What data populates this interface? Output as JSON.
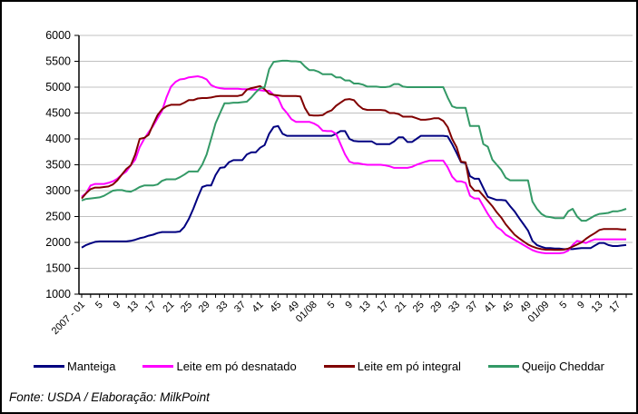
{
  "footer": {
    "text": "Fonte: USDA / Elaboração: MilkPoint"
  },
  "chart_data": {
    "type": "line",
    "title": "",
    "xlabel": "",
    "ylabel": "",
    "ylim": [
      1000,
      6000
    ],
    "y_tick_step": 500,
    "y_tick_labels": [
      "6000",
      "5500",
      "5000",
      "4500",
      "4000",
      "3500",
      "3000",
      "2500",
      "2000",
      "1500",
      "1000"
    ],
    "x_tick_labels": [
      "2007 - 01",
      "5",
      "9",
      "13",
      "17",
      "21",
      "25",
      "29",
      "33",
      "37",
      "41",
      "45",
      "49",
      "01/08",
      "5",
      "9",
      "13",
      "17",
      "21",
      "25",
      "29",
      "33",
      "37",
      "41",
      "45",
      "49",
      "01/09",
      "5",
      "9",
      "13",
      "17"
    ],
    "x_points_per_label": 4,
    "minor_tick_every": 2,
    "x_axis_note": "weekly points: 2007 weeks 1-52, 2008 weeks 1-52, 2009 weeks 1-19",
    "grid": "horizontal",
    "gridline_color": "#C0C0C0",
    "axis_color": "#000000",
    "legend_position": "bottom",
    "series": [
      {
        "name": "Manteiga",
        "id": "manteiga",
        "color": "#000080",
        "values": [
          1900,
          1950,
          1980,
          2010,
          2020,
          2020,
          2020,
          2020,
          2020,
          2020,
          2020,
          2030,
          2050,
          2080,
          2100,
          2130,
          2150,
          2180,
          2200,
          2200,
          2200,
          2200,
          2210,
          2300,
          2450,
          2650,
          2870,
          3070,
          3100,
          3100,
          3300,
          3440,
          3450,
          3550,
          3590,
          3590,
          3590,
          3700,
          3740,
          3740,
          3830,
          3880,
          4100,
          4230,
          4250,
          4100,
          4060,
          4060,
          4060,
          4060,
          4060,
          4060,
          4060,
          4060,
          4060,
          4060,
          4060,
          4100,
          4150,
          4150,
          4000,
          3960,
          3950,
          3950,
          3950,
          3950,
          3900,
          3900,
          3900,
          3900,
          3950,
          4030,
          4030,
          3940,
          3940,
          4000,
          4060,
          4060,
          4060,
          4060,
          4060,
          4060,
          4050,
          3900,
          3730,
          3550,
          3530,
          3280,
          3230,
          3230,
          3050,
          2880,
          2850,
          2820,
          2820,
          2810,
          2700,
          2600,
          2470,
          2350,
          2230,
          2030,
          1950,
          1915,
          1890,
          1890,
          1880,
          1880,
          1870,
          1870,
          1870,
          1880,
          1890,
          1890,
          1890,
          1940,
          1990,
          1990,
          1950,
          1930,
          1930,
          1940,
          1950
        ]
      },
      {
        "name": "Leite em pó desnatado",
        "id": "leite-em-po-desnatado",
        "color": "#FF00FF",
        "values": [
          2880,
          2950,
          3100,
          3130,
          3130,
          3130,
          3150,
          3180,
          3230,
          3310,
          3370,
          3490,
          3600,
          3840,
          4000,
          4130,
          4250,
          4400,
          4540,
          4800,
          5010,
          5100,
          5150,
          5160,
          5190,
          5200,
          5210,
          5190,
          5150,
          5040,
          5000,
          4980,
          4970,
          4970,
          4970,
          4970,
          4960,
          4960,
          4950,
          4950,
          4940,
          4930,
          4930,
          4850,
          4790,
          4600,
          4500,
          4380,
          4330,
          4330,
          4330,
          4330,
          4300,
          4250,
          4160,
          4150,
          4150,
          4100,
          3900,
          3700,
          3560,
          3530,
          3530,
          3510,
          3500,
          3500,
          3500,
          3500,
          3490,
          3470,
          3440,
          3440,
          3440,
          3440,
          3460,
          3500,
          3530,
          3560,
          3580,
          3580,
          3580,
          3580,
          3450,
          3270,
          3180,
          3180,
          3150,
          2900,
          2850,
          2850,
          2700,
          2550,
          2420,
          2300,
          2240,
          2150,
          2100,
          2050,
          2000,
          1950,
          1900,
          1850,
          1820,
          1800,
          1790,
          1790,
          1790,
          1790,
          1800,
          1840,
          1950,
          2030,
          2010,
          1990,
          2030,
          2060,
          2060,
          2060,
          2060,
          2060,
          2060,
          2060,
          2060
        ]
      },
      {
        "name": "Leite em pó integral",
        "id": "leite-em-po-integral",
        "color": "#800000",
        "values": [
          2850,
          2950,
          3030,
          3060,
          3060,
          3070,
          3080,
          3120,
          3200,
          3310,
          3420,
          3490,
          3700,
          4000,
          4020,
          4080,
          4280,
          4460,
          4570,
          4630,
          4660,
          4660,
          4660,
          4700,
          4750,
          4750,
          4780,
          4790,
          4790,
          4800,
          4820,
          4830,
          4830,
          4830,
          4830,
          4830,
          4850,
          4950,
          4980,
          5000,
          5020,
          4960,
          4870,
          4850,
          4840,
          4830,
          4830,
          4830,
          4830,
          4820,
          4600,
          4460,
          4450,
          4450,
          4460,
          4520,
          4550,
          4640,
          4700,
          4760,
          4770,
          4750,
          4650,
          4580,
          4560,
          4560,
          4560,
          4560,
          4550,
          4500,
          4500,
          4480,
          4430,
          4430,
          4430,
          4400,
          4370,
          4370,
          4380,
          4400,
          4400,
          4350,
          4230,
          4000,
          3840,
          3560,
          3550,
          3100,
          3000,
          3000,
          2900,
          2800,
          2700,
          2580,
          2480,
          2350,
          2250,
          2150,
          2080,
          2020,
          1960,
          1920,
          1890,
          1870,
          1860,
          1860,
          1855,
          1855,
          1860,
          1880,
          1920,
          1960,
          2000,
          2070,
          2130,
          2180,
          2240,
          2260,
          2260,
          2260,
          2260,
          2250,
          2250
        ]
      },
      {
        "name": "Queijo Cheddar",
        "id": "queijo-cheddar",
        "color": "#339966",
        "values": [
          2810,
          2840,
          2850,
          2860,
          2870,
          2900,
          2950,
          3000,
          3010,
          3010,
          2990,
          2980,
          3020,
          3070,
          3100,
          3100,
          3100,
          3120,
          3190,
          3220,
          3220,
          3220,
          3260,
          3310,
          3370,
          3370,
          3370,
          3500,
          3700,
          4000,
          4300,
          4500,
          4690,
          4690,
          4700,
          4700,
          4710,
          4720,
          4800,
          4900,
          4980,
          5000,
          5350,
          5490,
          5500,
          5510,
          5510,
          5500,
          5500,
          5490,
          5400,
          5330,
          5330,
          5300,
          5250,
          5250,
          5250,
          5190,
          5190,
          5130,
          5130,
          5070,
          5070,
          5050,
          5010,
          5010,
          5010,
          5000,
          5000,
          5010,
          5060,
          5060,
          5010,
          5000,
          5000,
          5000,
          5000,
          5000,
          5000,
          5000,
          5000,
          5000,
          4800,
          4630,
          4600,
          4600,
          4600,
          4250,
          4250,
          4250,
          3900,
          3850,
          3600,
          3500,
          3400,
          3250,
          3200,
          3200,
          3200,
          3200,
          3200,
          2790,
          2650,
          2550,
          2500,
          2490,
          2470,
          2470,
          2470,
          2600,
          2650,
          2500,
          2420,
          2420,
          2470,
          2520,
          2550,
          2560,
          2570,
          2600,
          2600,
          2620,
          2650
        ]
      }
    ]
  }
}
